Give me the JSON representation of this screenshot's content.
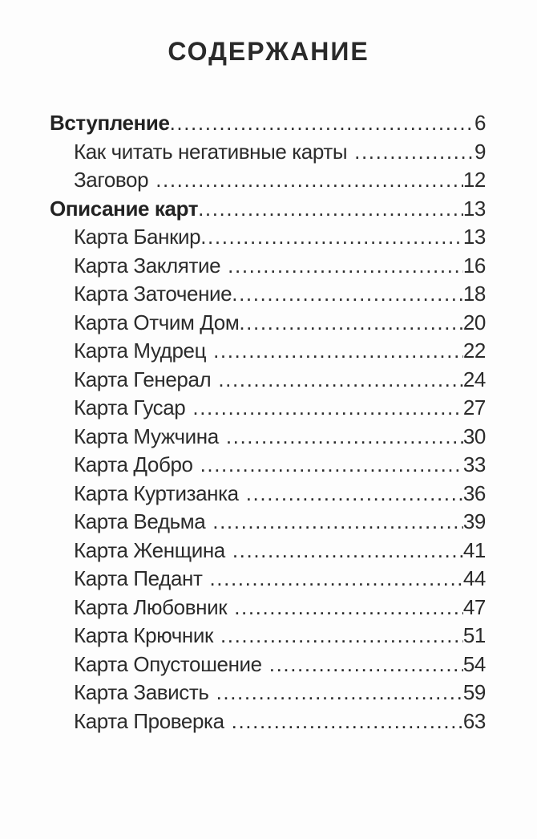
{
  "page": {
    "title": "СОДЕРЖАНИЕ",
    "background": "#fdfdfd",
    "text_color": "#2b2b2b"
  },
  "toc": {
    "entries": [
      {
        "label": "Вступление",
        "page": "6",
        "bold": true,
        "indent": 0,
        "gap": false
      },
      {
        "label": "Как читать негативные карты",
        "page": "9",
        "bold": false,
        "indent": 1,
        "gap": true
      },
      {
        "label": "Заговор",
        "page": "12",
        "bold": false,
        "indent": 1,
        "gap": true
      },
      {
        "label": "Описание карт",
        "page": "13",
        "bold": true,
        "indent": 0,
        "gap": false
      },
      {
        "label": "Карта Банкир",
        "page": "13",
        "bold": false,
        "indent": 1,
        "gap": false
      },
      {
        "label": "Карта Заклятие",
        "page": "16",
        "bold": false,
        "indent": 1,
        "gap": true
      },
      {
        "label": "Карта Заточение",
        "page": "18",
        "bold": false,
        "indent": 1,
        "gap": false
      },
      {
        "label": "Карта Отчим Дом",
        "page": "20",
        "bold": false,
        "indent": 1,
        "gap": false
      },
      {
        "label": "Карта Мудрец",
        "page": "22",
        "bold": false,
        "indent": 1,
        "gap": true
      },
      {
        "label": "Карта Генерал",
        "page": "24",
        "bold": false,
        "indent": 1,
        "gap": true
      },
      {
        "label": "Карта Гусар",
        "page": "27",
        "bold": false,
        "indent": 1,
        "gap": true
      },
      {
        "label": "Карта Мужчина",
        "page": "30",
        "bold": false,
        "indent": 1,
        "gap": true
      },
      {
        "label": "Карта Добро",
        "page": "33",
        "bold": false,
        "indent": 1,
        "gap": true
      },
      {
        "label": "Карта Куртизанка",
        "page": "36",
        "bold": false,
        "indent": 1,
        "gap": true
      },
      {
        "label": "Карта Ведьма",
        "page": "39",
        "bold": false,
        "indent": 1,
        "gap": true
      },
      {
        "label": "Карта Женщина",
        "page": "41",
        "bold": false,
        "indent": 1,
        "gap": true
      },
      {
        "label": "Карта Педант",
        "page": "44",
        "bold": false,
        "indent": 1,
        "gap": true
      },
      {
        "label": "Карта Любовник",
        "page": "47",
        "bold": false,
        "indent": 1,
        "gap": true
      },
      {
        "label": "Карта Крючник",
        "page": "51",
        "bold": false,
        "indent": 1,
        "gap": true
      },
      {
        "label": "Карта Опустошение",
        "page": "54",
        "bold": false,
        "indent": 1,
        "gap": true
      },
      {
        "label": "Карта Зависть",
        "page": "59",
        "bold": false,
        "indent": 1,
        "gap": true
      },
      {
        "label": "Карта Проверка",
        "page": "63",
        "bold": false,
        "indent": 1,
        "gap": true
      }
    ]
  }
}
